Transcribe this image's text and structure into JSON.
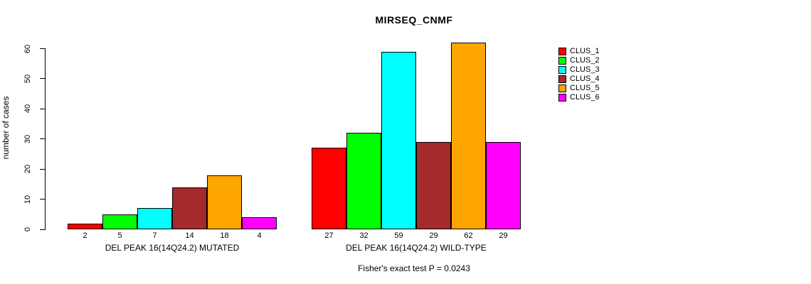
{
  "chart_data": {
    "type": "bar",
    "title": "MIRSEQ_CNMF",
    "ylabel": "number of cases",
    "annotation": "Fisher's exact test P = 0.0243",
    "categories": [
      "DEL PEAK 16(14Q24.2) MUTATED",
      "DEL PEAK 16(14Q24.2) WILD-TYPE"
    ],
    "series": [
      {
        "name": "CLUS_1",
        "color": "#FF0000",
        "values": [
          2,
          27
        ]
      },
      {
        "name": "CLUS_2",
        "color": "#00FF00",
        "values": [
          5,
          32
        ]
      },
      {
        "name": "CLUS_3",
        "color": "#00FFFF",
        "values": [
          7,
          59
        ]
      },
      {
        "name": "CLUS_4",
        "color": "#A52A2A",
        "values": [
          14,
          29
        ]
      },
      {
        "name": "CLUS_5",
        "color": "#FFA500",
        "values": [
          18,
          62
        ]
      },
      {
        "name": "CLUS_6",
        "color": "#FF00FF",
        "values": [
          4,
          29
        ]
      }
    ],
    "ylim": [
      0,
      60
    ],
    "yticks": [
      0,
      10,
      20,
      30,
      40,
      50,
      60
    ],
    "bar_value_labels_shown": true,
    "grid": false,
    "legend_position": "right-inside"
  }
}
